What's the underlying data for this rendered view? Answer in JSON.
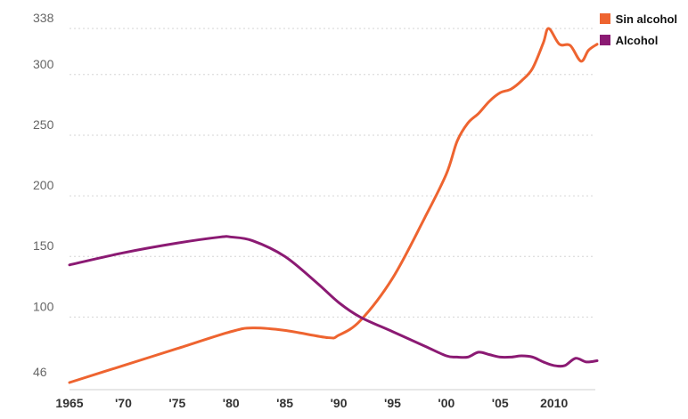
{
  "chart_data": {
    "type": "line",
    "y_ticks": [
      "46",
      "100",
      "150",
      "200",
      "250",
      "300",
      "338"
    ],
    "x_ticks": [
      "1965",
      "'70",
      "'75",
      "'80",
      "'85",
      "'90",
      "'95",
      "'00",
      "'05",
      "2010"
    ],
    "x_tick_values": [
      1965,
      1970,
      1975,
      1980,
      1985,
      1990,
      1995,
      2000,
      2005,
      2010
    ],
    "ylim": [
      46,
      338
    ],
    "xlim": [
      1965,
      2014
    ],
    "grid": "horizontal dashed",
    "legend_position": "top-right",
    "series": [
      {
        "name": "Sin alcohol",
        "color": "#ee6430",
        "points": [
          [
            1965,
            46
          ],
          [
            1970,
            60
          ],
          [
            1975,
            74
          ],
          [
            1980,
            88
          ],
          [
            1982,
            91
          ],
          [
            1985,
            89
          ],
          [
            1989,
            83
          ],
          [
            1990,
            85
          ],
          [
            1992,
            97
          ],
          [
            1995,
            132
          ],
          [
            1998,
            182
          ],
          [
            2000,
            218
          ],
          [
            2001,
            245
          ],
          [
            2002,
            260
          ],
          [
            2003,
            268
          ],
          [
            2004,
            278
          ],
          [
            2005,
            285
          ],
          [
            2006,
            288
          ],
          [
            2007,
            295
          ],
          [
            2008,
            305
          ],
          [
            2009,
            326
          ],
          [
            2009.5,
            338
          ],
          [
            2010.5,
            325
          ],
          [
            2011.5,
            324
          ],
          [
            2012.5,
            311
          ],
          [
            2013.2,
            320
          ],
          [
            2014,
            325
          ]
        ]
      },
      {
        "name": "Alcohol",
        "color": "#8b1a73",
        "points": [
          [
            1965,
            143
          ],
          [
            1970,
            153
          ],
          [
            1975,
            161
          ],
          [
            1979,
            166
          ],
          [
            1980,
            166
          ],
          [
            1982,
            163
          ],
          [
            1985,
            150
          ],
          [
            1988,
            128
          ],
          [
            1990,
            112
          ],
          [
            1992,
            100
          ],
          [
            1995,
            88
          ],
          [
            1998,
            76
          ],
          [
            2000,
            68
          ],
          [
            2001,
            67
          ],
          [
            2002,
            67
          ],
          [
            2003,
            71
          ],
          [
            2004,
            69
          ],
          [
            2005,
            67
          ],
          [
            2006,
            67
          ],
          [
            2007,
            68
          ],
          [
            2008,
            67
          ],
          [
            2009,
            63
          ],
          [
            2010,
            60
          ],
          [
            2011,
            60
          ],
          [
            2012,
            66
          ],
          [
            2013,
            63
          ],
          [
            2014,
            64
          ]
        ]
      }
    ]
  },
  "legend": {
    "items": [
      {
        "label": "Sin alcohol",
        "color": "#ee6430"
      },
      {
        "label": "Alcohol",
        "color": "#8b1a73"
      }
    ]
  }
}
